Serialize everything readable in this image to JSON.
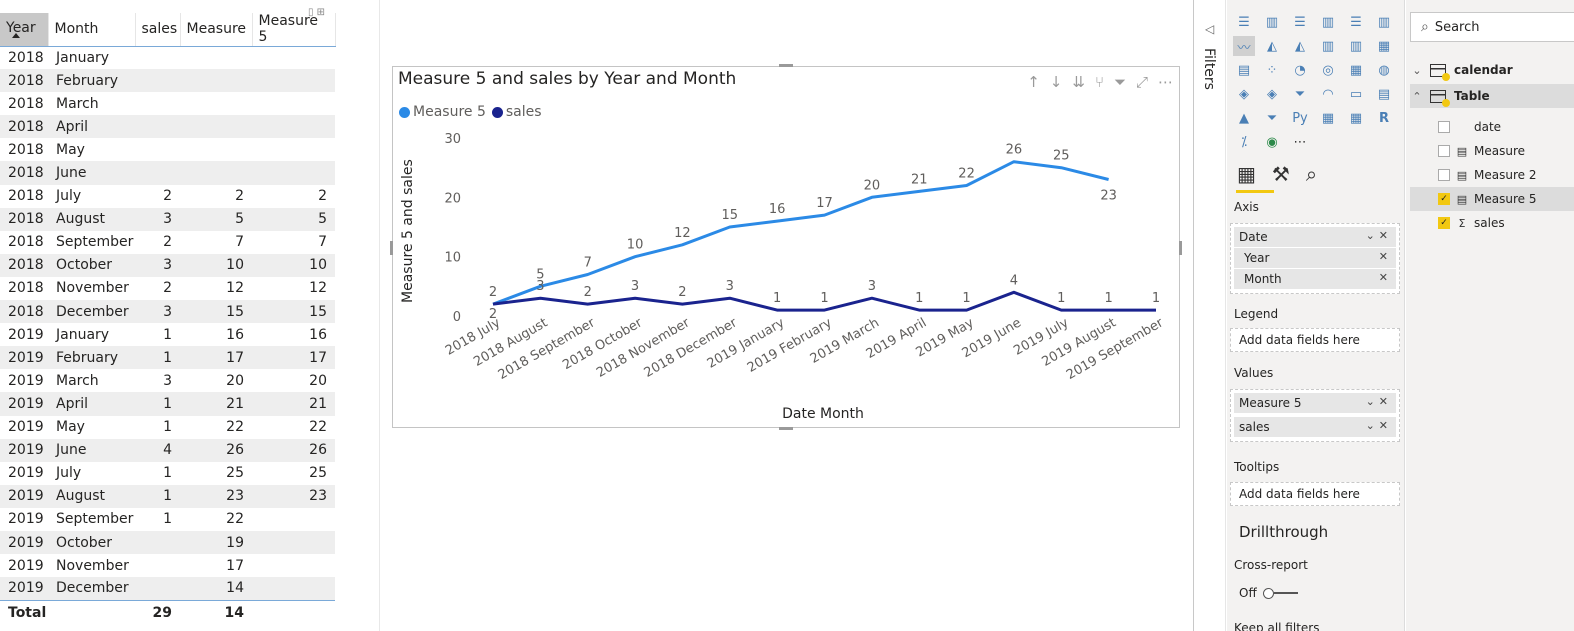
{
  "table": {
    "headers": [
      "Year",
      "Month",
      "sales",
      "Measure",
      "Measure 5"
    ],
    "rows": [
      [
        "2018",
        "January",
        "",
        "",
        ""
      ],
      [
        "2018",
        "February",
        "",
        "",
        ""
      ],
      [
        "2018",
        "March",
        "",
        "",
        ""
      ],
      [
        "2018",
        "April",
        "",
        "",
        ""
      ],
      [
        "2018",
        "May",
        "",
        "",
        ""
      ],
      [
        "2018",
        "June",
        "",
        "",
        ""
      ],
      [
        "2018",
        "July",
        "2",
        "2",
        "2"
      ],
      [
        "2018",
        "August",
        "3",
        "5",
        "5"
      ],
      [
        "2018",
        "September",
        "2",
        "7",
        "7"
      ],
      [
        "2018",
        "October",
        "3",
        "10",
        "10"
      ],
      [
        "2018",
        "November",
        "2",
        "12",
        "12"
      ],
      [
        "2018",
        "December",
        "3",
        "15",
        "15"
      ],
      [
        "2019",
        "January",
        "1",
        "16",
        "16"
      ],
      [
        "2019",
        "February",
        "1",
        "17",
        "17"
      ],
      [
        "2019",
        "March",
        "3",
        "20",
        "20"
      ],
      [
        "2019",
        "April",
        "1",
        "21",
        "21"
      ],
      [
        "2019",
        "May",
        "1",
        "22",
        "22"
      ],
      [
        "2019",
        "June",
        "4",
        "26",
        "26"
      ],
      [
        "2019",
        "July",
        "1",
        "25",
        "25"
      ],
      [
        "2019",
        "August",
        "1",
        "23",
        "23"
      ],
      [
        "2019",
        "September",
        "1",
        "22",
        ""
      ],
      [
        "2019",
        "October",
        "",
        "19",
        ""
      ],
      [
        "2019",
        "November",
        "",
        "17",
        ""
      ],
      [
        "2019",
        "December",
        "",
        "14",
        ""
      ]
    ],
    "total": [
      "Total",
      "",
      "29",
      "14",
      ""
    ]
  },
  "chart_data": {
    "type": "line",
    "title": "Measure 5 and sales by Year and Month",
    "xlabel": "Date Month",
    "ylabel": "Measure 5 and sales",
    "ylim": [
      0,
      30
    ],
    "yticks": [
      "0",
      "10",
      "20",
      "30"
    ],
    "categories": [
      "2018 July",
      "2018 August",
      "2018 September",
      "2018 October",
      "2018 November",
      "2018 December",
      "2019 January",
      "2019 February",
      "2019 March",
      "2019 April",
      "2019 May",
      "2019 June",
      "2019 July",
      "2019 August",
      "2019 September"
    ],
    "series": [
      {
        "name": "Measure 5",
        "color": "#2b8ae6",
        "values": [
          2,
          5,
          7,
          10,
          12,
          15,
          16,
          17,
          20,
          21,
          22,
          26,
          25,
          23,
          null
        ]
      },
      {
        "name": "sales",
        "color": "#1a238e",
        "values": [
          2,
          3,
          2,
          3,
          2,
          3,
          1,
          1,
          3,
          1,
          1,
          4,
          1,
          1,
          1
        ]
      }
    ],
    "legend_position": "top-left",
    "grid": false
  },
  "filters": {
    "label": "Filters"
  },
  "viz": {
    "axis_label": "Axis",
    "axis_field": "Date",
    "axis_subfields": [
      "Year",
      "Month"
    ],
    "legend_label": "Legend",
    "legend_placeholder": "Add data fields here",
    "values_label": "Values",
    "values_fields": [
      "Measure 5",
      "sales"
    ],
    "tooltips_label": "Tooltips",
    "tooltips_placeholder": "Add data fields here",
    "drillthrough_label": "Drillthrough",
    "cross_report_label": "Cross-report",
    "toggle_label": "Off",
    "keep_filters_label": "Keep all filters"
  },
  "fields": {
    "search_placeholder": "Search",
    "tables": [
      {
        "name": "calendar",
        "expanded": false
      },
      {
        "name": "Table",
        "expanded": true
      }
    ],
    "items": [
      {
        "name": "date",
        "checked": false,
        "icon": "none"
      },
      {
        "name": "Measure",
        "checked": false,
        "icon": "calculator-icon"
      },
      {
        "name": "Measure 2",
        "checked": false,
        "icon": "calculator-icon"
      },
      {
        "name": "Measure 5",
        "checked": true,
        "icon": "calculator-icon"
      },
      {
        "name": "sales",
        "checked": true,
        "icon": "sigma-icon"
      }
    ]
  }
}
